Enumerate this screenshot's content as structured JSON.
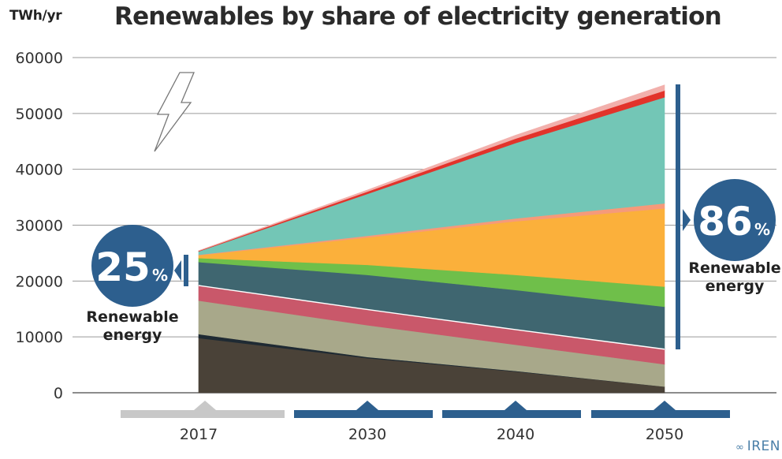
{
  "header": {
    "unit": "TWh/yr",
    "title": "Renewables by share of electricity generation"
  },
  "callouts": {
    "left": {
      "percent": "25",
      "percent_sign": "%",
      "line1": "Renewable",
      "line2": "energy"
    },
    "right": {
      "percent": "86",
      "percent_sign": "%",
      "line1": "Renewable",
      "line2": "energy"
    }
  },
  "logo": {
    "text": "IREN"
  },
  "colors": {
    "coal": "#4a4238",
    "coal_dark": "#1f2a33",
    "oil_gas": "#a8a88a",
    "nuclear": "#c9586a",
    "hydro": "#3f6670",
    "bioenergy": "#6fbf4a",
    "solar": "#fbb03b",
    "solar_top": "#f59a7a",
    "wind": "#73c6b6",
    "other": "#e2332b",
    "other_top": "#f2b0ac",
    "callout": "#2d5f8e",
    "year_bar_2017": "#c8c8c8",
    "year_bar_future": "#2d5f8e",
    "grid": "#9a9a9a"
  },
  "chart_data": {
    "type": "area",
    "stacked": true,
    "title": "Renewables by share of electricity generation",
    "ylabel": "TWh/yr",
    "xlabel": "",
    "x": [
      2017,
      2030,
      2040,
      2050
    ],
    "x_tick_labels": [
      "2017",
      "2030",
      "2040",
      "2050"
    ],
    "ylim": [
      0,
      60000
    ],
    "y_ticks": [
      0,
      10000,
      20000,
      30000,
      40000,
      50000,
      60000
    ],
    "y_tick_labels": [
      "0",
      "10000",
      "20000",
      "30000",
      "40000",
      "50000",
      "60000"
    ],
    "grid": true,
    "series": [
      {
        "color_key": "coal",
        "values": [
          9800,
          6200,
          3800,
          1100
        ]
      },
      {
        "color_key": "coal_dark",
        "values": [
          700,
          200,
          100,
          0
        ]
      },
      {
        "color_key": "oil_gas",
        "values": [
          6000,
          5700,
          4700,
          4000
        ]
      },
      {
        "color_key": "nuclear",
        "values": [
          2700,
          2800,
          2700,
          2700
        ]
      },
      {
        "color_key": "hydro",
        "values": [
          4200,
          6200,
          7100,
          7600
        ]
      },
      {
        "color_key": "bioenergy",
        "values": [
          700,
          1800,
          2700,
          3600
        ]
      },
      {
        "color_key": "solar",
        "values": [
          500,
          4900,
          9600,
          14000
        ]
      },
      {
        "color_key": "solar_top",
        "values": [
          100,
          300,
          500,
          900
        ]
      },
      {
        "color_key": "wind",
        "values": [
          600,
          7500,
          13500,
          19000
        ]
      },
      {
        "color_key": "other",
        "values": [
          100,
          400,
          800,
          1200
        ]
      },
      {
        "color_key": "other_top",
        "values": [
          50,
          300,
          600,
          1000
        ]
      }
    ],
    "renewable_share": {
      "2017": "25%",
      "2050": "86%"
    }
  }
}
